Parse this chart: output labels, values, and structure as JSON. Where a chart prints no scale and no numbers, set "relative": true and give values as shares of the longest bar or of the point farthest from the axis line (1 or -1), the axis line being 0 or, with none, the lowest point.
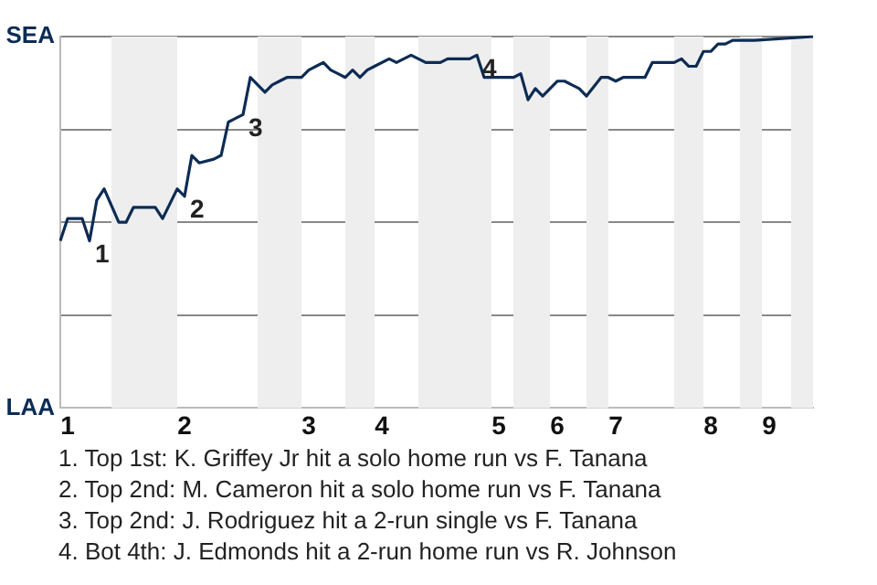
{
  "chart_data": {
    "type": "line",
    "color": "#0d2c54",
    "marker": "none",
    "grid": "y",
    "relative": true,
    "categories": [
      null,
      "1",
      null,
      null,
      null,
      null,
      null,
      null,
      null,
      null,
      null,
      null,
      null,
      null,
      null,
      null,
      null,
      "2",
      null,
      null,
      null,
      null,
      null,
      null,
      null,
      null,
      null,
      null,
      null,
      null,
      null,
      null,
      null,
      null,
      "3",
      null,
      null,
      null,
      null,
      null,
      null,
      null,
      null,
      null,
      "4",
      null,
      null,
      null,
      null,
      null,
      null,
      null,
      null,
      null,
      null,
      null,
      null,
      null,
      null,
      null,
      "5",
      null,
      null,
      null,
      null,
      null,
      null,
      null,
      "6",
      null,
      null,
      null,
      null,
      null,
      null,
      null,
      "7",
      null,
      null,
      null,
      null,
      null,
      null,
      null,
      null,
      null,
      null,
      null,
      null,
      "8",
      null,
      null,
      null,
      null,
      null,
      null,
      null,
      "9",
      null,
      null,
      null,
      null,
      null,
      null
    ],
    "values": [
      0.45,
      0.51,
      0.51,
      0.51,
      0.45,
      0.56,
      0.59,
      null,
      0.5,
      0.5,
      0.54,
      null,
      null,
      0.54,
      0.51,
      null,
      0.59,
      0.57,
      0.68,
      0.66,
      null,
      0.67,
      0.68,
      0.77,
      0.78,
      0.79,
      0.89,
      null,
      0.85,
      0.87,
      0.88,
      0.89,
      null,
      0.89,
      0.91,
      0.92,
      0.93,
      0.91,
      0.9,
      0.89,
      0.91,
      0.89,
      0.91,
      0.92,
      null,
      0.94,
      0.93,
      0.94,
      0.95,
      null,
      0.93,
      null,
      0.93,
      0.94,
      null,
      null,
      0.94,
      0.95,
      0.89,
      0.89,
      0.89,
      null,
      0.89,
      0.9,
      0.83,
      0.86,
      0.84,
      null,
      0.88,
      0.88,
      0.87,
      0.86,
      0.84,
      null,
      0.89,
      0.89,
      0.88,
      0.89,
      null,
      null,
      0.89,
      0.93,
      null,
      0.93,
      0.93,
      0.94,
      0.92,
      0.92,
      0.96,
      0.96,
      0.98,
      0.98,
      0.99,
      0.99,
      0.99,
      0.99,
      null,
      null,
      null,
      null,
      null,
      null,
      null,
      1
    ],
    "annotations": [
      "1",
      "2",
      "3",
      "4",
      "SEA",
      "LAA",
      "1. Top 1st: K. Griffey Jr hit a solo home run vs F. Tanana",
      "2. Top 2nd: M. Cameron hit a solo home run vs F. Tanana",
      "3. Top 2nd: J. Rodriguez hit a 2-run single vs F. Tanana",
      "4. Bot 4th: J. Edmonds hit a 2-run home run vs R. Johnson"
    ]
  }
}
